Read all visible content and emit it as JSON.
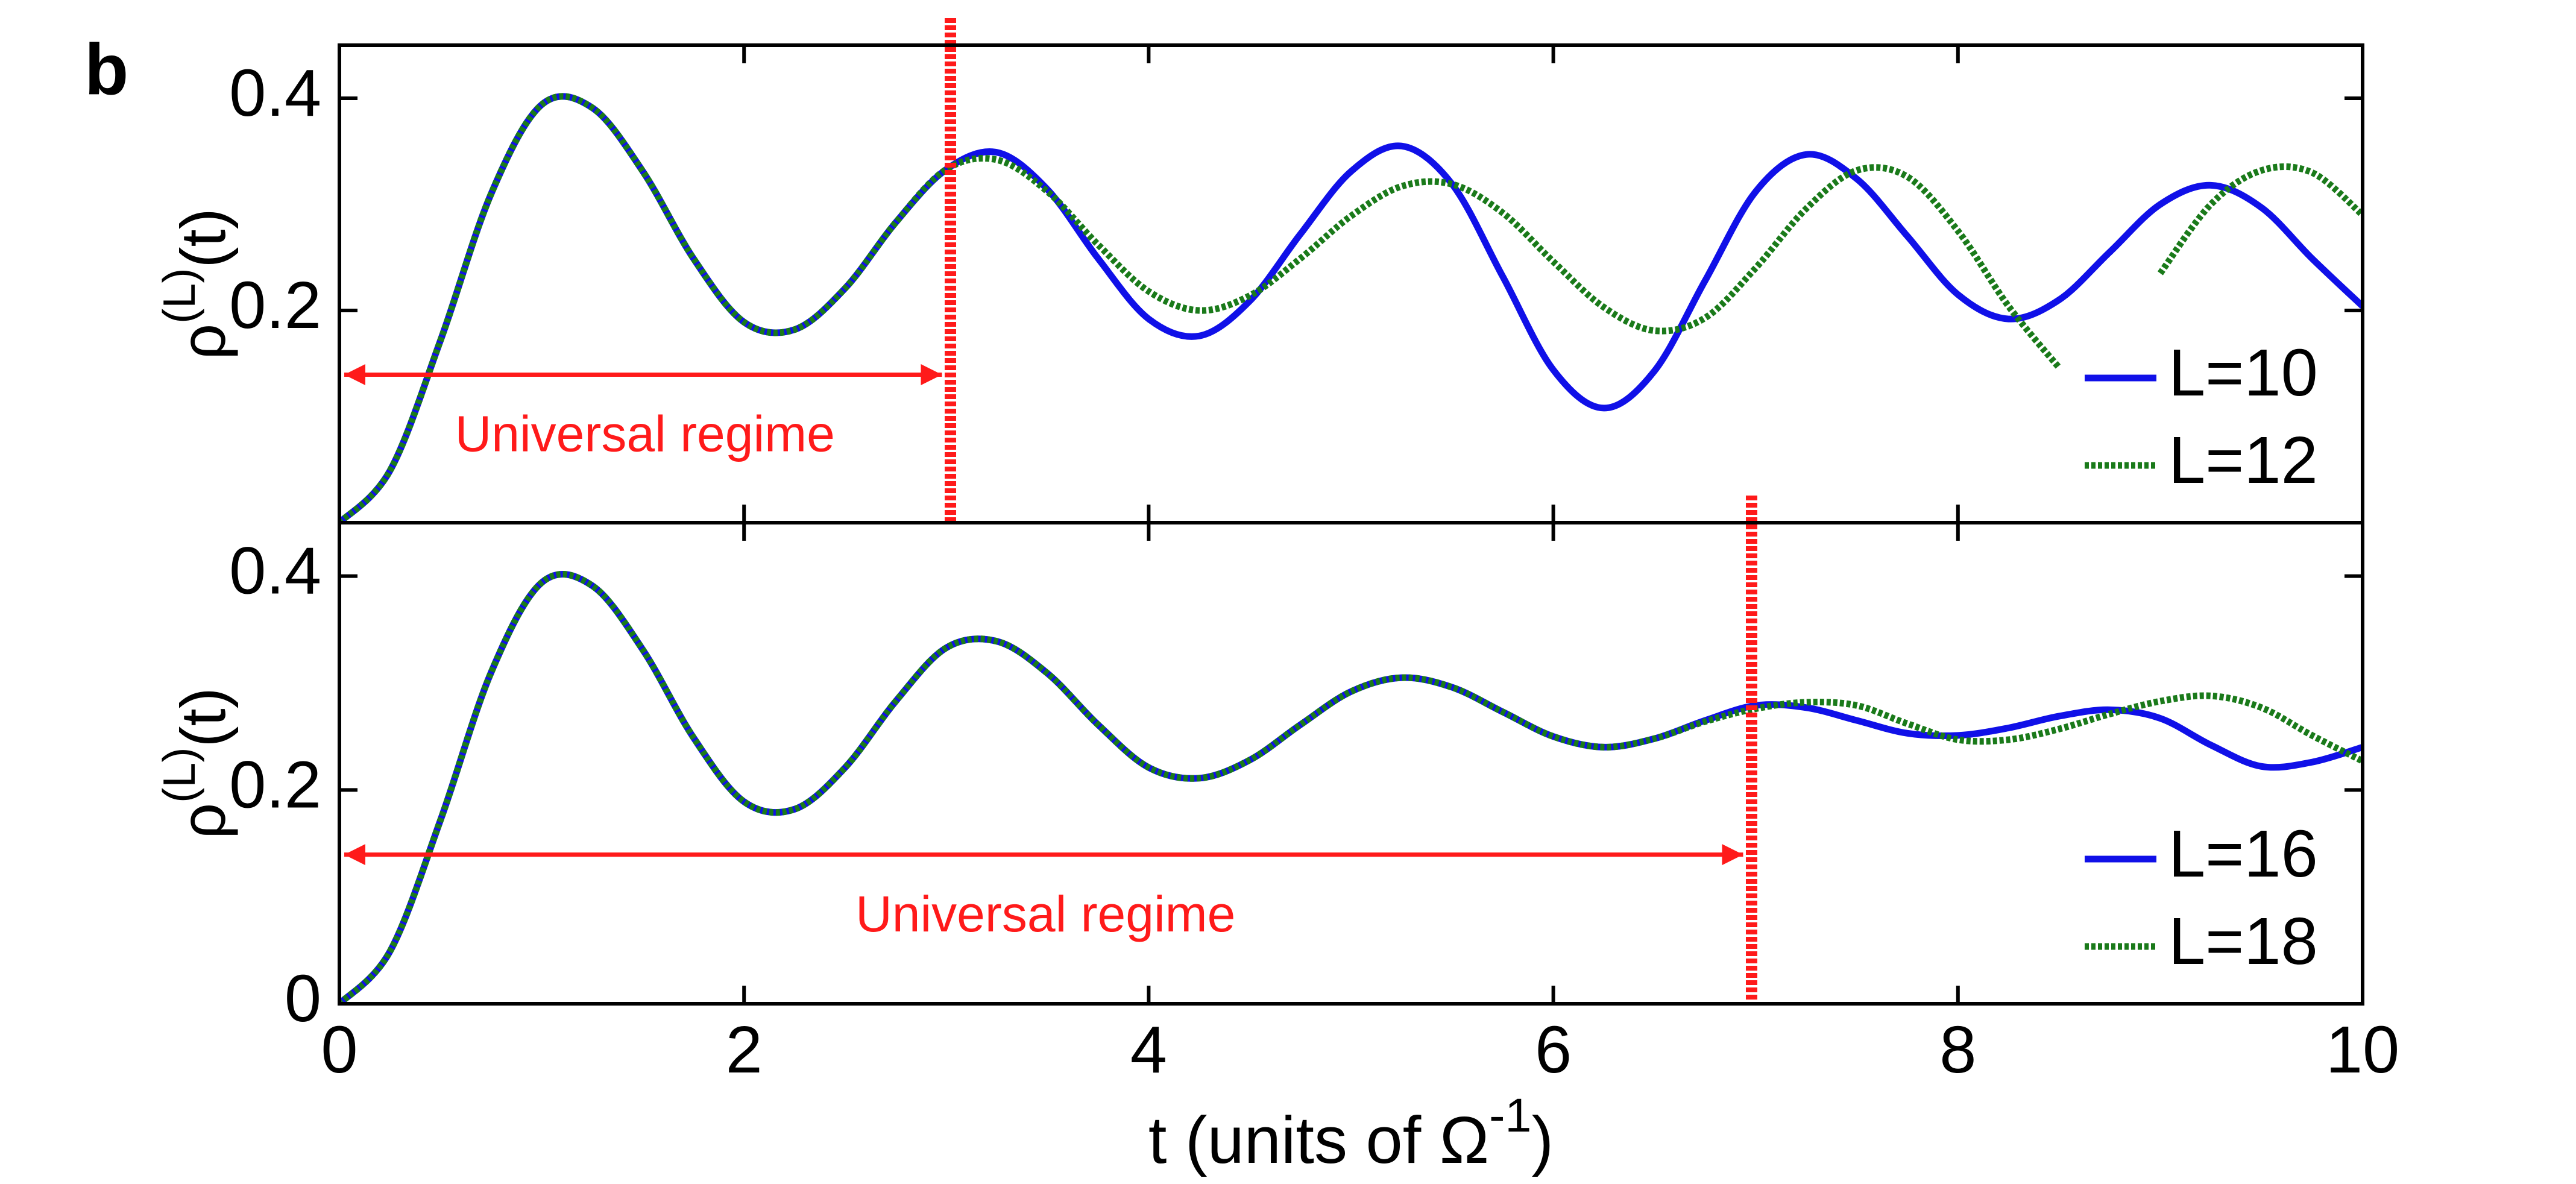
{
  "panel_label": "b",
  "chart_data": [
    {
      "type": "line",
      "ylabel": {
        "base": "ρ",
        "sup": "(L)",
        "tail": "(t)"
      },
      "x": [
        0,
        0.25,
        0.5,
        0.75,
        1,
        1.25,
        1.5,
        1.75,
        2,
        2.25,
        2.5,
        2.75,
        3,
        3.25,
        3.5,
        3.75,
        4,
        4.25,
        4.5,
        4.75,
        5,
        5.25,
        5.5,
        5.75,
        6,
        6.25,
        6.5,
        6.75,
        7,
        7.25,
        7.5,
        7.75,
        8,
        8.25,
        8.5,
        8.75,
        9,
        9.25,
        9.5,
        9.75,
        10
      ],
      "xlim": [
        0,
        10
      ],
      "xticks": [
        0,
        2,
        4,
        6,
        8,
        10
      ],
      "ylim": [
        0,
        0.45
      ],
      "yticks": [
        0.2,
        0.4
      ],
      "legend": "lower right",
      "annotation": {
        "text": "Universal regime",
        "x": 3.02,
        "color": "#ff1a1a"
      },
      "series": [
        {
          "name": "L=10",
          "color": "#1010e8",
          "style": "solid",
          "values": [
            0,
            0.049,
            0.172,
            0.31,
            0.394,
            0.391,
            0.331,
            0.249,
            0.189,
            0.182,
            0.221,
            0.283,
            0.333,
            0.349,
            0.314,
            0.249,
            0.192,
            0.176,
            0.209,
            0.272,
            0.331,
            0.355,
            0.319,
            0.232,
            0.144,
            0.108,
            0.143,
            0.228,
            0.312,
            0.347,
            0.324,
            0.27,
            0.215,
            0.192,
            0.21,
            0.255,
            0.3,
            0.318,
            0.297,
            0.249,
            0.204
          ]
        },
        {
          "name": "L=12",
          "color": "#1a7a1a",
          "style": "dotted",
          "values": [
            0,
            0.049,
            0.172,
            0.31,
            0.394,
            0.391,
            0.331,
            0.249,
            0.189,
            0.182,
            0.221,
            0.283,
            0.333,
            0.342,
            0.312,
            0.262,
            0.218,
            0.2,
            0.214,
            0.249,
            0.289,
            0.317,
            0.319,
            0.292,
            0.246,
            0.203,
            0.181,
            0.193,
            0.24,
            0.296,
            0.332,
            0.326,
            0.275,
            0.204,
            0.146,
            null,
            0.235,
            0.3,
            0.332,
            0.33,
            0.29
          ]
        }
      ]
    },
    {
      "type": "line",
      "ylabel": {
        "base": "ρ",
        "sup": "(L)",
        "tail": "(t)"
      },
      "xlabel": {
        "base": "t (units of Ω",
        "sup": "-1",
        "tail": ")"
      },
      "x": [
        0,
        0.25,
        0.5,
        0.75,
        1,
        1.25,
        1.5,
        1.75,
        2,
        2.25,
        2.5,
        2.75,
        3,
        3.25,
        3.5,
        3.75,
        4,
        4.25,
        4.5,
        4.75,
        5,
        5.25,
        5.5,
        5.75,
        6,
        6.25,
        6.5,
        6.75,
        7,
        7.25,
        7.5,
        7.75,
        8,
        8.25,
        8.5,
        8.75,
        9,
        9.25,
        9.5,
        9.75,
        10
      ],
      "xlim": [
        0,
        10
      ],
      "xticks": [
        0,
        2,
        4,
        6,
        8,
        10
      ],
      "ylim": [
        0,
        0.45
      ],
      "yticks": [
        0,
        0.2,
        0.4
      ],
      "legend": "lower right",
      "annotation": {
        "text": "Universal regime",
        "x": 6.98,
        "color": "#ff1a1a"
      },
      "series": [
        {
          "name": "L=16",
          "color": "#1010e8",
          "style": "solid",
          "values": [
            0,
            0.049,
            0.172,
            0.31,
            0.394,
            0.391,
            0.331,
            0.249,
            0.189,
            0.182,
            0.221,
            0.283,
            0.333,
            0.339,
            0.309,
            0.261,
            0.221,
            0.211,
            0.228,
            0.261,
            0.292,
            0.305,
            0.296,
            0.273,
            0.25,
            0.24,
            0.248,
            0.265,
            0.279,
            0.277,
            0.265,
            0.253,
            0.251,
            0.258,
            0.269,
            0.275,
            0.267,
            0.242,
            0.222,
            0.226,
            0.24
          ]
        },
        {
          "name": "L=18",
          "color": "#1a7a1a",
          "style": "dotted",
          "values": [
            0,
            0.049,
            0.172,
            0.31,
            0.394,
            0.391,
            0.331,
            0.249,
            0.189,
            0.182,
            0.221,
            0.283,
            0.333,
            0.339,
            0.309,
            0.261,
            0.221,
            0.211,
            0.228,
            0.261,
            0.292,
            0.305,
            0.296,
            0.273,
            0.25,
            0.24,
            0.248,
            0.264,
            0.276,
            0.282,
            0.279,
            0.262,
            0.247,
            0.247,
            0.257,
            0.271,
            0.283,
            0.288,
            0.277,
            0.251,
            0.227
          ]
        }
      ]
    }
  ]
}
